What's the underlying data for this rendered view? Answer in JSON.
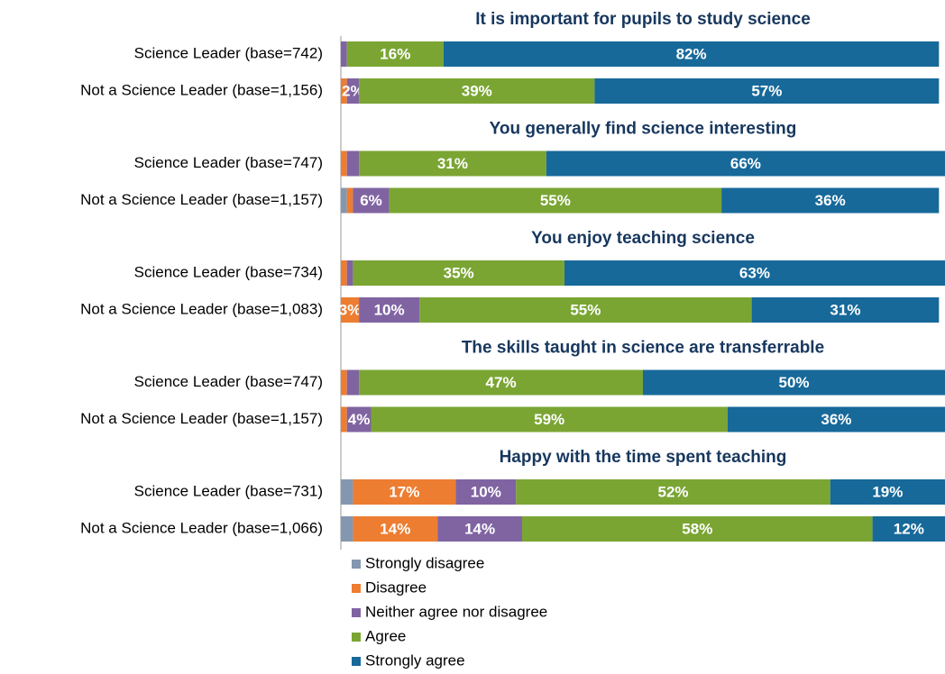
{
  "chart_data": {
    "type": "bar",
    "orientation": "horizontal",
    "stacked": true,
    "group_titles": [
      "It is important for pupils to study science",
      "You generally find science interesting",
      "You enjoy teaching science",
      "The skills taught in science are transferrable",
      "Happy with the time spent teaching"
    ],
    "categories": [
      "Science Leader (base=742)",
      "Not a Science Leader (base=1,156)",
      "Science Leader (base=747)",
      "Not a Science Leader (base=1,157)",
      "Science Leader (base=734)",
      "Not a Science Leader (base=1,083)",
      "Science Leader (base=747)",
      "Not a Science Leader (base=1,157)",
      "Science Leader (base=731)",
      "Not a Science Leader (base=1,066)"
    ],
    "xlim": [
      0,
      100
    ],
    "legend": "bottom-left",
    "series": [
      {
        "name": "Strongly disagree",
        "color": "#8497b0",
        "values": [
          0,
          0,
          0,
          1,
          0,
          0,
          0,
          0,
          2,
          2
        ],
        "value_labels": [
          null,
          null,
          null,
          null,
          null,
          null,
          null,
          null,
          null,
          null
        ]
      },
      {
        "name": "Disagree",
        "color": "#ed7d31",
        "values": [
          0,
          1,
          1,
          1,
          1,
          3,
          1,
          1,
          17,
          14
        ],
        "value_labels": [
          null,
          null,
          null,
          null,
          null,
          "3%",
          null,
          null,
          "17%",
          "14%"
        ]
      },
      {
        "name": "Neither agree nor disagree",
        "color": "#8064a2",
        "values": [
          1,
          2,
          2,
          6,
          1,
          10,
          2,
          4,
          10,
          14
        ],
        "value_labels": [
          null,
          "2%",
          null,
          "6%",
          null,
          "10%",
          null,
          "4%",
          "10%",
          "14%"
        ]
      },
      {
        "name": "Agree",
        "color": "#7aa533",
        "values": [
          16,
          39,
          31,
          55,
          35,
          55,
          47,
          59,
          52,
          58
        ],
        "value_labels": [
          "16%",
          "39%",
          "31%",
          "55%",
          "35%",
          "55%",
          "47%",
          "59%",
          "52%",
          "58%"
        ]
      },
      {
        "name": "Strongly agree",
        "color": "#17699a",
        "values": [
          82,
          57,
          66,
          36,
          63,
          31,
          50,
          36,
          19,
          12
        ],
        "value_labels": [
          "82%",
          "57%",
          "66%",
          "36%",
          "63%",
          "31%",
          "50%",
          "36%",
          "19%",
          "12%"
        ]
      }
    ]
  }
}
